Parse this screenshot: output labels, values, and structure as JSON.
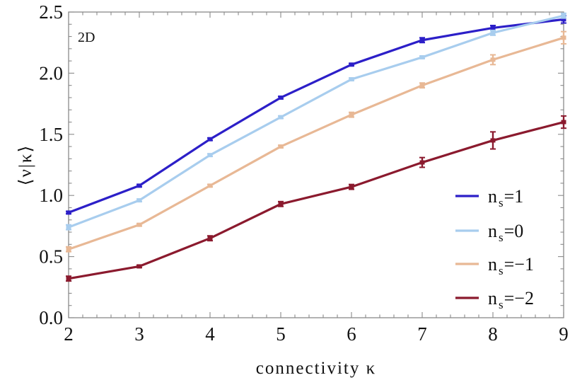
{
  "chart_data": {
    "type": "line",
    "title": "",
    "annotation": "2D",
    "xlabel": "connectivity κ",
    "ylabel": "⟨ν|κ⟩",
    "xlim": [
      2,
      9
    ],
    "ylim": [
      0.0,
      2.5
    ],
    "x": [
      2,
      3,
      4,
      5,
      6,
      7,
      8,
      9
    ],
    "x_ticks": [
      "2",
      "3",
      "4",
      "5",
      "6",
      "7",
      "8",
      "9"
    ],
    "y_ticks": [
      "0.0",
      "0.5",
      "1.0",
      "1.5",
      "2.0",
      "2.5"
    ],
    "y_tick_values": [
      0.0,
      0.5,
      1.0,
      1.5,
      2.0,
      2.5
    ],
    "grid": false,
    "legend_position": "lower right",
    "series": [
      {
        "name": "n_s=1",
        "label_main": "n",
        "label_sub": "s",
        "label_rest": "=1",
        "color": "#2C1FC8",
        "values": [
          0.86,
          1.08,
          1.46,
          1.8,
          2.07,
          2.27,
          2.37,
          2.44
        ],
        "errors": [
          0.01,
          0.01,
          0.01,
          0.01,
          0.01,
          0.02,
          0.02,
          0.03
        ]
      },
      {
        "name": "n_s=0",
        "label_main": "n",
        "label_sub": "s",
        "label_rest": "=0",
        "color": "#A8CDEE",
        "values": [
          0.74,
          0.96,
          1.33,
          1.64,
          1.95,
          2.13,
          2.33,
          2.47
        ],
        "errors": [
          0.02,
          0.01,
          0.01,
          0.01,
          0.01,
          0.01,
          0.02,
          0.02
        ]
      },
      {
        "name": "n_s=-1",
        "label_main": "n",
        "label_sub": "s",
        "label_rest": "=−1",
        "color": "#E8B895",
        "values": [
          0.56,
          0.76,
          1.08,
          1.4,
          1.66,
          1.9,
          2.11,
          2.29
        ],
        "errors": [
          0.02,
          0.01,
          0.01,
          0.01,
          0.02,
          0.02,
          0.04,
          0.05
        ]
      },
      {
        "name": "n_s=-2",
        "label_main": "n",
        "label_sub": "s",
        "label_rest": "=−2",
        "color": "#8B1A2E",
        "values": [
          0.32,
          0.42,
          0.65,
          0.93,
          1.07,
          1.27,
          1.45,
          1.6
        ],
        "errors": [
          0.02,
          0.01,
          0.02,
          0.02,
          0.02,
          0.04,
          0.07,
          0.05
        ]
      }
    ]
  }
}
